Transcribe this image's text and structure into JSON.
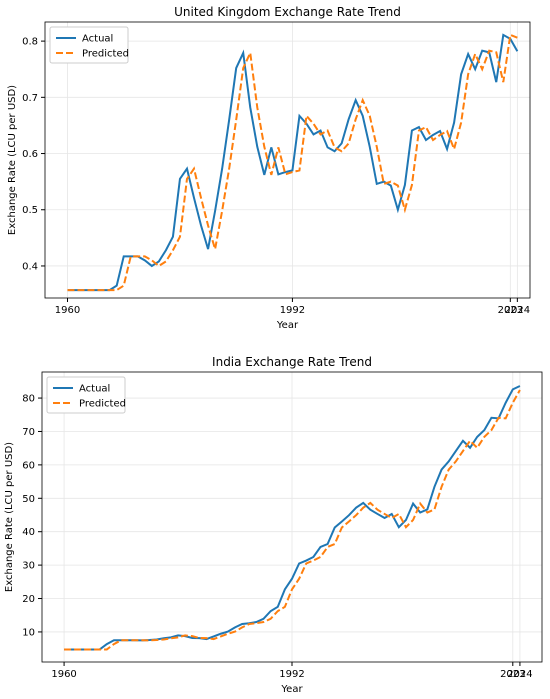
{
  "chart_data": [
    {
      "type": "line",
      "title": "United Kingdom Exchange Rate Trend",
      "xlabel": "Year",
      "ylabel": "Exchange Rate (LCU per USD)",
      "x": [
        1960,
        1961,
        1962,
        1963,
        1964,
        1965,
        1966,
        1967,
        1968,
        1969,
        1970,
        1971,
        1972,
        1973,
        1974,
        1975,
        1976,
        1977,
        1978,
        1979,
        1980,
        1981,
        1982,
        1983,
        1984,
        1985,
        1986,
        1987,
        1988,
        1989,
        1990,
        1991,
        1992,
        1993,
        1994,
        1995,
        1996,
        1997,
        1998,
        1999,
        2000,
        2001,
        2002,
        2003,
        2004,
        2005,
        2006,
        2007,
        2008,
        2009,
        2010,
        2011,
        2012,
        2013,
        2014,
        2015,
        2016,
        2017,
        2018,
        2019,
        2020,
        2021,
        2022,
        2023,
        2024
      ],
      "series": [
        {
          "name": "Actual",
          "color": "#1f77b4",
          "linestyle": "solid",
          "values": [
            0.357,
            0.357,
            0.357,
            0.357,
            0.357,
            0.357,
            0.357,
            0.365,
            0.417,
            0.417,
            0.417,
            0.41,
            0.4,
            0.408,
            0.428,
            0.452,
            0.555,
            0.573,
            0.521,
            0.472,
            0.43,
            0.498,
            0.573,
            0.66,
            0.752,
            0.779,
            0.682,
            0.612,
            0.562,
            0.611,
            0.563,
            0.567,
            0.57,
            0.667,
            0.653,
            0.634,
            0.641,
            0.611,
            0.604,
            0.618,
            0.661,
            0.695,
            0.667,
            0.612,
            0.546,
            0.55,
            0.543,
            0.5,
            0.544,
            0.641,
            0.647,
            0.624,
            0.633,
            0.64,
            0.608,
            0.655,
            0.741,
            0.777,
            0.75,
            0.783,
            0.78,
            0.727,
            0.811,
            0.804,
            0.782
          ]
        },
        {
          "name": "Predicted",
          "color": "#ff7f0e",
          "linestyle": "dashed",
          "values": [
            0.357,
            0.357,
            0.357,
            0.357,
            0.357,
            0.357,
            0.357,
            0.357,
            0.365,
            0.417,
            0.417,
            0.417,
            0.41,
            0.4,
            0.408,
            0.428,
            0.452,
            0.555,
            0.573,
            0.521,
            0.472,
            0.43,
            0.498,
            0.573,
            0.66,
            0.752,
            0.779,
            0.682,
            0.612,
            0.562,
            0.611,
            0.563,
            0.567,
            0.57,
            0.667,
            0.653,
            0.634,
            0.641,
            0.611,
            0.604,
            0.618,
            0.661,
            0.695,
            0.667,
            0.612,
            0.546,
            0.55,
            0.543,
            0.5,
            0.544,
            0.641,
            0.647,
            0.624,
            0.633,
            0.64,
            0.608,
            0.655,
            0.741,
            0.777,
            0.75,
            0.783,
            0.78,
            0.727,
            0.811,
            0.806
          ]
        }
      ],
      "xlim": [
        1956.8,
        2025.8
      ],
      "xticks": [
        1960,
        1992,
        2023,
        2024
      ],
      "ylim": [
        0.343,
        0.834
      ],
      "yticks": [
        0.4,
        0.5,
        0.6,
        0.7,
        0.8
      ],
      "grid": true,
      "legend": "upper left"
    },
    {
      "type": "line",
      "title": "India Exchange Rate Trend",
      "xlabel": "Year",
      "ylabel": "Exchange Rate (LCU per USD)",
      "x": [
        1960,
        1961,
        1962,
        1963,
        1964,
        1965,
        1966,
        1967,
        1968,
        1969,
        1970,
        1971,
        1972,
        1973,
        1974,
        1975,
        1976,
        1977,
        1978,
        1979,
        1980,
        1981,
        1982,
        1983,
        1984,
        1985,
        1986,
        1987,
        1988,
        1989,
        1990,
        1991,
        1992,
        1993,
        1994,
        1995,
        1996,
        1997,
        1998,
        1999,
        2000,
        2001,
        2002,
        2003,
        2004,
        2005,
        2006,
        2007,
        2008,
        2009,
        2010,
        2011,
        2012,
        2013,
        2014,
        2015,
        2016,
        2017,
        2018,
        2019,
        2020,
        2021,
        2022,
        2023,
        2024
      ],
      "series": [
        {
          "name": "Actual",
          "color": "#1f77b4",
          "linestyle": "solid",
          "values": [
            4.76,
            4.76,
            4.76,
            4.76,
            4.76,
            4.76,
            6.36,
            7.5,
            7.5,
            7.5,
            7.5,
            7.49,
            7.59,
            7.74,
            8.1,
            8.38,
            8.96,
            8.74,
            8.19,
            8.13,
            7.86,
            8.66,
            9.46,
            10.1,
            11.36,
            12.37,
            12.61,
            12.96,
            13.92,
            16.23,
            17.5,
            22.74,
            25.92,
            30.49,
            31.37,
            32.43,
            35.43,
            36.31,
            41.26,
            43.06,
            44.94,
            47.19,
            48.61,
            46.58,
            45.32,
            44.1,
            45.31,
            41.35,
            43.51,
            48.41,
            45.73,
            46.67,
            53.44,
            58.6,
            61.03,
            64.15,
            67.2,
            65.12,
            68.39,
            70.42,
            74.1,
            73.92,
            78.6,
            82.6,
            83.6
          ]
        },
        {
          "name": "Predicted",
          "color": "#ff7f0e",
          "linestyle": "dashed",
          "values": [
            4.76,
            4.76,
            4.76,
            4.76,
            4.76,
            4.76,
            4.76,
            6.36,
            7.5,
            7.5,
            7.5,
            7.5,
            7.49,
            7.59,
            7.74,
            8.1,
            8.38,
            8.96,
            8.74,
            8.19,
            8.13,
            7.86,
            8.66,
            9.46,
            10.1,
            11.36,
            12.37,
            12.61,
            12.96,
            13.92,
            16.23,
            17.5,
            22.74,
            25.92,
            30.49,
            31.37,
            32.43,
            35.43,
            36.31,
            41.26,
            43.06,
            44.94,
            47.19,
            48.61,
            46.58,
            45.32,
            44.1,
            45.31,
            41.35,
            43.51,
            48.41,
            45.73,
            46.67,
            53.44,
            58.6,
            61.03,
            64.15,
            67.2,
            65.12,
            68.39,
            70.42,
            74.1,
            73.92,
            78.6,
            82.4
          ]
        }
      ],
      "xlim": [
        1956.9,
        2027.1
      ],
      "xticks": [
        1960,
        1992,
        2023,
        2024
      ],
      "ylim": [
        1.0,
        87.8
      ],
      "yticks": [
        10,
        20,
        30,
        40,
        50,
        60,
        70,
        80
      ],
      "grid": true,
      "legend": "upper left"
    }
  ]
}
